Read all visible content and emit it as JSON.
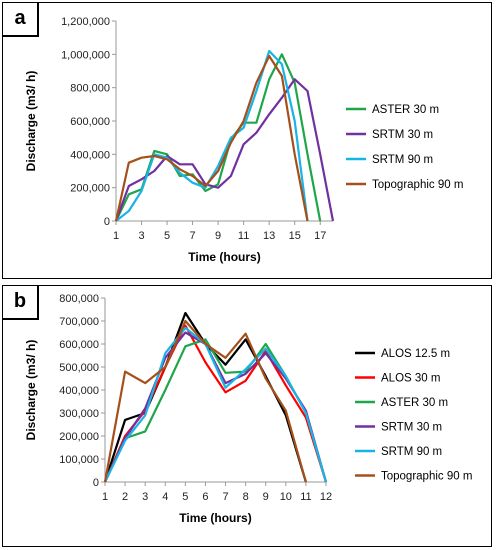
{
  "chart_data": [
    {
      "panel": "a",
      "type": "line",
      "xlabel": "Time  (hours)",
      "ylabel": "Discharge  (m3/ h)",
      "xlim": [
        1,
        18
      ],
      "x_ticks": [
        1,
        3,
        5,
        7,
        9,
        11,
        13,
        15,
        17
      ],
      "ylim": [
        0,
        1200000
      ],
      "y_ticks": [
        0,
        200000,
        400000,
        600000,
        800000,
        1000000,
        1200000
      ],
      "y_tick_labels": [
        "0",
        "200,000",
        "400,000",
        "600,000",
        "800,000",
        "1,000,000",
        "1,200,000"
      ],
      "grid": false,
      "legend_position": "right",
      "series": [
        {
          "name": "ASTER 30 m",
          "color": "#1fa64a",
          "x": [
            1,
            2,
            3,
            4,
            5,
            6,
            7,
            8,
            9,
            10,
            11,
            12,
            13,
            14,
            15,
            16,
            17
          ],
          "values": [
            0,
            160000,
            190000,
            420000,
            400000,
            270000,
            280000,
            180000,
            220000,
            490000,
            590000,
            590000,
            850000,
            1000000,
            830000,
            400000,
            0
          ]
        },
        {
          "name": "SRTM 30 m",
          "color": "#7030a0",
          "x": [
            1,
            2,
            3,
            4,
            5,
            6,
            7,
            8,
            9,
            10,
            11,
            12,
            13,
            14,
            15,
            16,
            17,
            18
          ],
          "values": [
            0,
            210000,
            250000,
            300000,
            390000,
            340000,
            340000,
            220000,
            200000,
            270000,
            460000,
            530000,
            640000,
            740000,
            850000,
            780000,
            400000,
            0
          ]
        },
        {
          "name": "SRTM 90 m",
          "color": "#18b4e6",
          "x": [
            1,
            2,
            3,
            4,
            5,
            6,
            7,
            8,
            9,
            10,
            11,
            12,
            13,
            14,
            15,
            16
          ],
          "values": [
            0,
            60000,
            180000,
            400000,
            380000,
            290000,
            230000,
            200000,
            330000,
            500000,
            560000,
            780000,
            1020000,
            940000,
            600000,
            0
          ]
        },
        {
          "name": "Topographic 90 m",
          "color": "#a5501b",
          "x": [
            1,
            2,
            3,
            4,
            5,
            6,
            7,
            8,
            9,
            10,
            11,
            12,
            13,
            14,
            15,
            16
          ],
          "values": [
            0,
            350000,
            380000,
            390000,
            370000,
            310000,
            270000,
            210000,
            300000,
            470000,
            600000,
            830000,
            990000,
            870000,
            400000,
            0
          ]
        }
      ]
    },
    {
      "panel": "b",
      "type": "line",
      "xlabel": "Time  (hours)",
      "ylabel": "Discharge  (m3/ h)",
      "xlim": [
        1,
        12
      ],
      "x_ticks": [
        1,
        2,
        3,
        4,
        5,
        6,
        7,
        8,
        9,
        10,
        11,
        12
      ],
      "ylim": [
        0,
        800000
      ],
      "y_ticks": [
        0,
        100000,
        200000,
        300000,
        400000,
        500000,
        600000,
        700000,
        800000
      ],
      "y_tick_labels": [
        "0",
        "100,000",
        "200,000",
        "300,000",
        "400,000",
        "500,000",
        "600,000",
        "700,000",
        "800,000"
      ],
      "grid": false,
      "legend_position": "right",
      "series": [
        {
          "name": "ALOS 12.5 m",
          "color": "#000000",
          "x": [
            1,
            2,
            3,
            4,
            5,
            6,
            7,
            8,
            9,
            10,
            11
          ],
          "values": [
            0,
            270000,
            300000,
            500000,
            735000,
            600000,
            510000,
            620000,
            460000,
            290000,
            0
          ]
        },
        {
          "name": "ALOS 30 m",
          "color": "#ff0000",
          "x": [
            1,
            2,
            3,
            4,
            5,
            6,
            7,
            8,
            9,
            10,
            11,
            12
          ],
          "values": [
            0,
            200000,
            310000,
            500000,
            680000,
            520000,
            390000,
            440000,
            570000,
            420000,
            280000,
            0
          ]
        },
        {
          "name": "ASTER 30 m",
          "color": "#1fa64a",
          "x": [
            1,
            2,
            3,
            4,
            5,
            6,
            7,
            8,
            9,
            10,
            11,
            12
          ],
          "values": [
            0,
            190000,
            220000,
            400000,
            590000,
            620000,
            475000,
            480000,
            600000,
            460000,
            300000,
            0
          ]
        },
        {
          "name": "SRTM 30 m",
          "color": "#7030a0",
          "x": [
            1,
            2,
            3,
            4,
            5,
            6,
            7,
            8,
            9,
            10,
            11,
            12
          ],
          "values": [
            0,
            190000,
            320000,
            540000,
            650000,
            600000,
            430000,
            470000,
            560000,
            450000,
            310000,
            0
          ]
        },
        {
          "name": "SRTM 90 m",
          "color": "#18b4e6",
          "x": [
            1,
            2,
            3,
            4,
            5,
            6,
            7,
            8,
            9,
            10,
            11,
            12
          ],
          "values": [
            0,
            180000,
            290000,
            560000,
            670000,
            600000,
            410000,
            490000,
            580000,
            460000,
            300000,
            0
          ]
        },
        {
          "name": "Topographic 90 m",
          "color": "#a5501b",
          "x": [
            1,
            2,
            3,
            4,
            5,
            6,
            7,
            8,
            9,
            10,
            11
          ],
          "values": [
            0,
            480000,
            430000,
            500000,
            700000,
            600000,
            540000,
            645000,
            450000,
            310000,
            0
          ]
        }
      ]
    }
  ],
  "panels": [
    {
      "label": "a"
    },
    {
      "label": "b"
    }
  ]
}
